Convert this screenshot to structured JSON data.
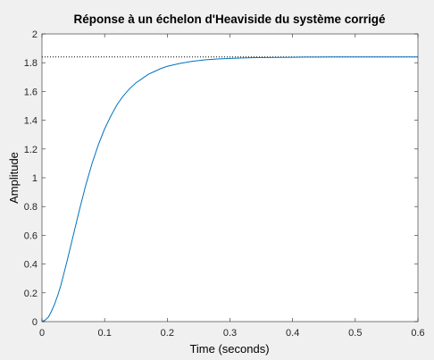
{
  "chart_data": {
    "type": "line",
    "title": "Réponse à un échelon d'Heaviside du système corrigé",
    "xlabel": "Time (seconds)",
    "ylabel": "Amplitude",
    "xlim": [
      0,
      0.6
    ],
    "ylim": [
      0,
      2
    ],
    "xticks": [
      0,
      0.1,
      0.2,
      0.3,
      0.4,
      0.5,
      0.6
    ],
    "xtick_labels": [
      "0",
      "0.1",
      "0.2",
      "0.3",
      "0.4",
      "0.5",
      "0.6"
    ],
    "yticks": [
      0,
      0.2,
      0.4,
      0.6,
      0.8,
      1,
      1.2,
      1.4,
      1.6,
      1.8,
      2
    ],
    "ytick_labels": [
      "0",
      "0.2",
      "0.4",
      "0.6",
      "0.8",
      "1",
      "1.2",
      "1.4",
      "1.6",
      "1.8",
      "2"
    ],
    "grid": false,
    "steady_state": 1.84,
    "series": [
      {
        "color": "#0072bd",
        "x": [
          0,
          0.005,
          0.01,
          0.015,
          0.02,
          0.025,
          0.03,
          0.04,
          0.05,
          0.06,
          0.07,
          0.08,
          0.09,
          0.1,
          0.11,
          0.12,
          0.13,
          0.14,
          0.15,
          0.16,
          0.17,
          0.18,
          0.19,
          0.2,
          0.22,
          0.24,
          0.26,
          0.28,
          0.3,
          0.32,
          0.34,
          0.36,
          0.38,
          0.4,
          0.42,
          0.44,
          0.46,
          0.48,
          0.5,
          0.52,
          0.55,
          0.58,
          0.6
        ],
        "y": [
          0,
          0.01,
          0.03,
          0.07,
          0.12,
          0.18,
          0.25,
          0.42,
          0.6,
          0.78,
          0.95,
          1.1,
          1.23,
          1.34,
          1.43,
          1.51,
          1.57,
          1.62,
          1.66,
          1.69,
          1.72,
          1.74,
          1.76,
          1.775,
          1.795,
          1.81,
          1.82,
          1.826,
          1.83,
          1.833,
          1.835,
          1.836,
          1.837,
          1.838,
          1.839,
          1.839,
          1.84,
          1.84,
          1.84,
          1.84,
          1.84,
          1.84,
          1.84
        ]
      }
    ],
    "colors": {
      "background": "#f0f0f0",
      "plot_background": "#ffffff",
      "axis": "#262626",
      "steady_state_line": "#000000"
    }
  }
}
